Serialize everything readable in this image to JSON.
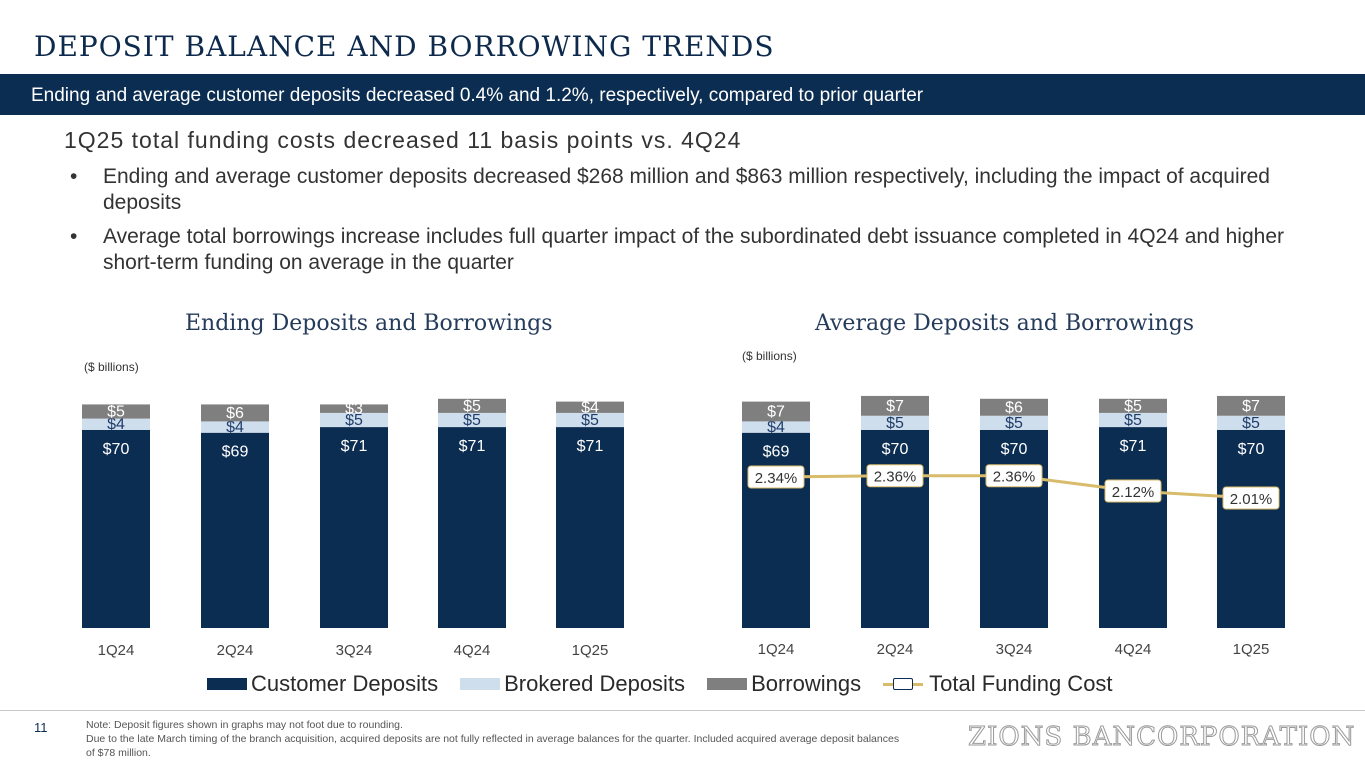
{
  "page": {
    "title": "DEPOSIT BALANCE AND BORROWING TRENDS",
    "banner": "Ending and average customer deposits decreased 0.4% and 1.2%, respectively, compared to prior quarter",
    "subheading": "1Q25 total funding costs decreased 11 basis points vs. 4Q24",
    "bullets": [
      "Ending and average customer deposits decreased $268 million and $863 million respectively, including the impact of acquired deposits",
      "Average total borrowings increase includes full quarter impact of the subordinated debt issuance completed in 4Q24 and higher short-term funding on average in the quarter"
    ],
    "page_number": "11",
    "note_lines": [
      "Note: Deposit figures shown in graphs may not foot due to rounding.",
      "Due to the late March timing of the branch acquisition, acquired deposits are not fully reflected in average balances for the quarter. Included acquired average deposit balances of $78 million."
    ],
    "logo": "ZIONS BANCORPORATION"
  },
  "colors": {
    "customer": "#0c2d52",
    "brokered": "#cfdeec",
    "borrowings": "#7f7f7f",
    "cost_line": "#d8bb6b"
  },
  "legend": {
    "customer": "Customer Deposits",
    "brokered": "Brokered Deposits",
    "borrowings": "Borrowings",
    "cost": "Total Funding Cost"
  },
  "chart_data": [
    {
      "type": "bar",
      "stacked": true,
      "title": "Ending Deposits and Borrowings",
      "unit_label": "($ billions)",
      "categories": [
        "1Q24",
        "2Q24",
        "3Q24",
        "4Q24",
        "1Q25"
      ],
      "series": [
        {
          "name": "Customer Deposits",
          "values": [
            70,
            69,
            71,
            71,
            71
          ],
          "labels": [
            "$70",
            "$69",
            "$71",
            "$71",
            "$71"
          ]
        },
        {
          "name": "Brokered Deposits",
          "values": [
            4,
            4,
            5,
            5,
            5
          ],
          "labels": [
            "$4",
            "$4",
            "$5",
            "$5",
            "$5"
          ]
        },
        {
          "name": "Borrowings",
          "values": [
            5,
            6,
            3,
            5,
            4
          ],
          "labels": [
            "$5",
            "$6",
            "$3",
            "$5",
            "$4"
          ]
        }
      ]
    },
    {
      "type": "bar",
      "stacked": true,
      "title": "Average Deposits and Borrowings",
      "unit_label": "($ billions)",
      "categories": [
        "1Q24",
        "2Q24",
        "3Q24",
        "4Q24",
        "1Q25"
      ],
      "series": [
        {
          "name": "Customer Deposits",
          "values": [
            69,
            70,
            70,
            71,
            70
          ],
          "labels": [
            "$69",
            "$70",
            "$70",
            "$71",
            "$70"
          ]
        },
        {
          "name": "Brokered Deposits",
          "values": [
            4,
            5,
            5,
            5,
            5
          ],
          "labels": [
            "$4",
            "$5",
            "$5",
            "$5",
            "$5"
          ]
        },
        {
          "name": "Borrowings",
          "values": [
            7,
            7,
            6,
            5,
            7
          ],
          "labels": [
            "$7",
            "$7",
            "$6",
            "$5",
            "$7"
          ]
        }
      ],
      "line": {
        "name": "Total Funding Cost",
        "values": [
          2.34,
          2.36,
          2.36,
          2.12,
          2.01
        ],
        "labels": [
          "2.34%",
          "2.36%",
          "2.36%",
          "2.12%",
          "2.01%"
        ]
      }
    }
  ]
}
